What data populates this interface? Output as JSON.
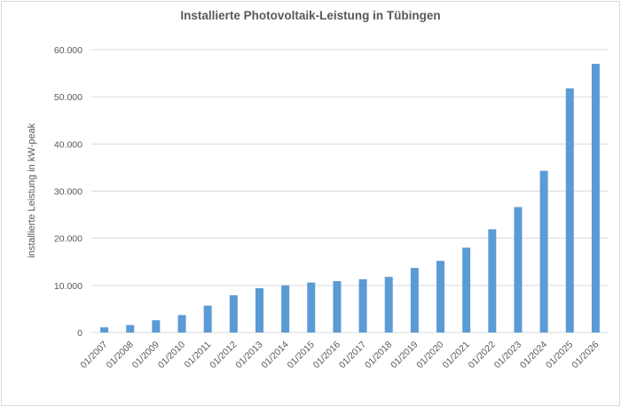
{
  "chart_data": {
    "type": "bar",
    "title": "Installierte Photovoltaik-Leistung in Tübingen",
    "xlabel": "",
    "ylabel": "installierte Leistung in kW-peak",
    "ylim": [
      0,
      60000
    ],
    "yticks": [
      "0",
      "10.000",
      "20.000",
      "30.000",
      "40.000",
      "50.000",
      "60.000"
    ],
    "grid": true,
    "legend": null,
    "bar_color": "#5b9bd5",
    "categories": [
      "01/2007",
      "01/2008",
      "01/2009",
      "01/2010",
      "01/2011",
      "01/2012",
      "01/2013",
      "01/2014",
      "01/2015",
      "01/2016",
      "01/2017",
      "01/2018",
      "01/2019",
      "01/2020",
      "01/2021",
      "01/2022",
      "01/2023",
      "01/2024",
      "01/2025",
      "01/2026"
    ],
    "values": [
      1100,
      1600,
      2600,
      3700,
      5700,
      7900,
      9400,
      10000,
      10600,
      10900,
      11300,
      11800,
      13700,
      15200,
      18000,
      21900,
      26600,
      34300,
      51800,
      57000
    ]
  }
}
